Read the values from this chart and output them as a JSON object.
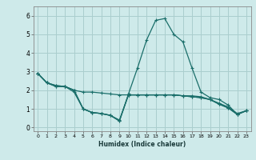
{
  "xlabel": "Humidex (Indice chaleur)",
  "background_color": "#ceeaea",
  "grid_color": "#aacece",
  "line_color": "#1a6e6a",
  "xlim": [
    -0.5,
    23.5
  ],
  "ylim": [
    -0.2,
    6.5
  ],
  "xticks": [
    0,
    1,
    2,
    3,
    4,
    5,
    6,
    7,
    8,
    9,
    10,
    11,
    12,
    13,
    14,
    15,
    16,
    17,
    18,
    19,
    20,
    21,
    22,
    23
  ],
  "yticks": [
    0,
    1,
    2,
    3,
    4,
    5,
    6
  ],
  "series": [
    [
      2.9,
      2.4,
      2.2,
      2.2,
      2.0,
      1.9,
      1.9,
      1.85,
      1.8,
      1.75,
      1.75,
      1.75,
      1.75,
      1.75,
      1.75,
      1.75,
      1.7,
      1.7,
      1.65,
      1.5,
      1.3,
      1.1,
      0.75,
      0.9
    ],
    [
      2.9,
      2.4,
      2.2,
      2.2,
      1.9,
      1.0,
      0.8,
      0.75,
      0.65,
      0.4,
      1.75,
      1.75,
      1.75,
      1.75,
      1.75,
      1.75,
      1.7,
      1.65,
      1.6,
      1.5,
      1.25,
      1.05,
      0.7,
      0.9
    ],
    [
      2.9,
      2.4,
      2.25,
      2.2,
      2.0,
      1.0,
      0.8,
      0.75,
      0.65,
      0.35,
      1.8,
      3.2,
      4.7,
      5.75,
      5.85,
      5.0,
      4.6,
      3.2,
      1.9,
      1.6,
      1.5,
      1.2,
      0.7,
      0.9
    ],
    [
      2.9,
      2.4,
      2.25,
      2.2,
      2.0,
      1.0,
      0.8,
      0.75,
      0.65,
      0.35,
      1.75,
      1.75,
      1.75,
      1.75,
      1.75,
      1.75,
      1.7,
      1.65,
      1.6,
      1.5,
      1.25,
      1.05,
      0.7,
      0.9
    ]
  ]
}
